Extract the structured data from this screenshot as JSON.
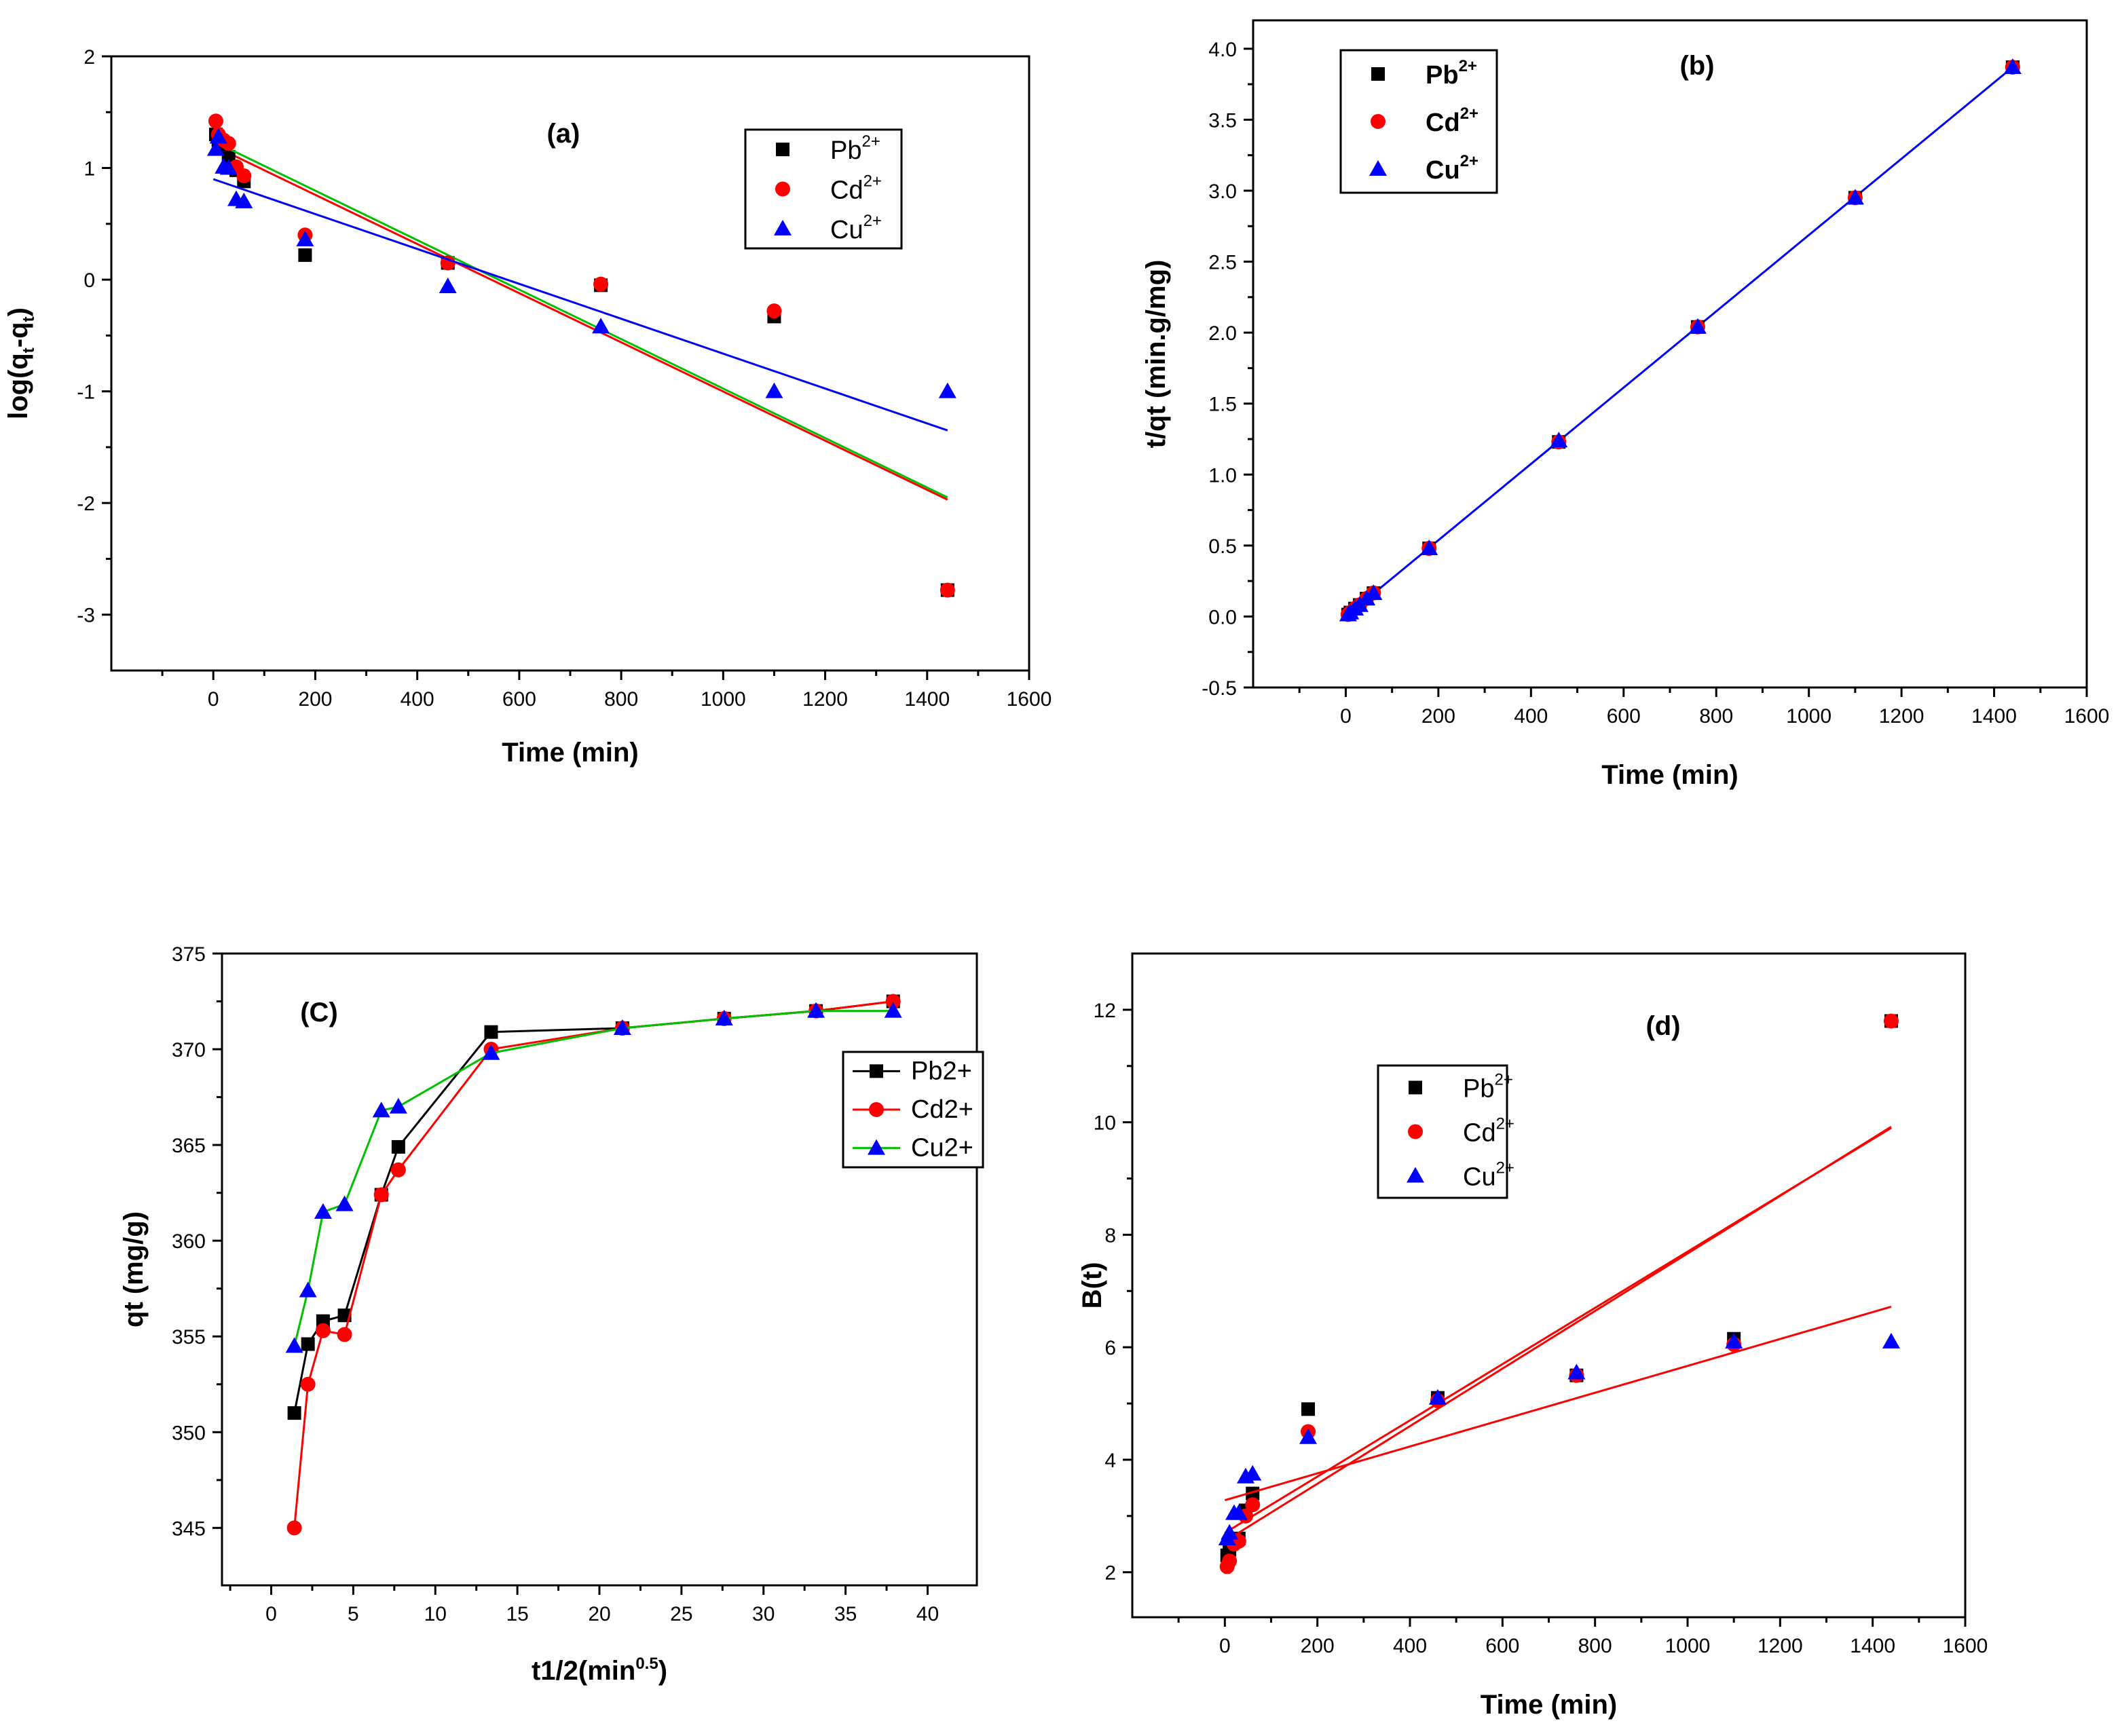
{
  "chart_data": [
    {
      "type": "scatter",
      "panel_label": "(a)",
      "xlabel": "Time (min)",
      "ylabel": {
        "prefix": "log(q",
        "sub1": "t",
        "mid": "-q",
        "sub2": "t",
        "suffix": ")"
      },
      "xlim": [
        -200,
        1600
      ],
      "ylim": [
        -3.5,
        2
      ],
      "xticks": [
        0,
        200,
        400,
        600,
        800,
        1000,
        1200,
        1400,
        1600
      ],
      "yticks": [
        -3,
        -2,
        -1,
        0,
        1,
        2
      ],
      "legend_position": "top-right",
      "series": [
        {
          "name": "Pb",
          "charge": "2+",
          "color": "#000000",
          "marker": "square",
          "x": [
            5,
            10,
            20,
            30,
            45,
            60,
            180,
            460,
            760,
            1100,
            1440
          ],
          "y": [
            1.3,
            1.25,
            1.2,
            1.1,
            0.98,
            0.88,
            0.22,
            0.15,
            -0.05,
            -0.33,
            -2.78
          ],
          "fit": {
            "color": "#ff0000",
            "x": [
              0,
              1440
            ],
            "y": [
              1.2,
              -1.97
            ]
          }
        },
        {
          "name": "Cd",
          "charge": "2+",
          "color": "#ff0000",
          "marker": "circle",
          "x": [
            5,
            10,
            20,
            30,
            45,
            60,
            180,
            460,
            760,
            1100,
            1440
          ],
          "y": [
            1.42,
            1.3,
            1.25,
            1.22,
            1.01,
            0.93,
            0.4,
            0.15,
            -0.04,
            -0.28,
            -2.78
          ],
          "fit": {
            "color": "#00c000",
            "x": [
              0,
              1440
            ],
            "y": [
              1.24,
              -1.95
            ]
          }
        },
        {
          "name": "Cu",
          "charge": "2+",
          "color": "#0000ff",
          "marker": "triangle",
          "x": [
            5,
            10,
            20,
            30,
            45,
            60,
            180,
            460,
            760,
            1100,
            1440
          ],
          "y": [
            1.17,
            1.28,
            1.01,
            1.0,
            0.72,
            0.7,
            0.36,
            -0.06,
            -0.42,
            -1.0,
            -1.0
          ],
          "fit": {
            "color": "#0000ff",
            "x": [
              0,
              1440
            ],
            "y": [
              0.9,
              -1.35
            ]
          }
        }
      ]
    },
    {
      "type": "scatter",
      "panel_label": "(b)",
      "xlabel": "Time (min)",
      "ylabel": "t/qt (min.g/mg)",
      "xlim": [
        -200,
        1600
      ],
      "ylim": [
        -0.5,
        4.2
      ],
      "xticks": [
        0,
        200,
        400,
        600,
        800,
        1000,
        1200,
        1400,
        1600
      ],
      "yticks": [
        -0.5,
        0.0,
        0.5,
        1.0,
        1.5,
        2.0,
        2.5,
        3.0,
        3.5,
        4.0
      ],
      "legend_position": "top-left",
      "series": [
        {
          "name": "Pb",
          "charge": "2+",
          "color": "#000000",
          "marker": "square",
          "x": [
            5,
            10,
            20,
            30,
            45,
            60,
            180,
            460,
            760,
            1100,
            1440
          ],
          "y": [
            0.014,
            0.028,
            0.056,
            0.081,
            0.126,
            0.165,
            0.48,
            1.23,
            2.04,
            2.95,
            3.87
          ]
        },
        {
          "name": "Cd",
          "charge": "2+",
          "color": "#ff0000",
          "marker": "circle",
          "x": [
            5,
            10,
            20,
            30,
            45,
            60,
            180,
            460,
            760,
            1100,
            1440
          ],
          "y": [
            0.014,
            0.028,
            0.057,
            0.082,
            0.127,
            0.166,
            0.48,
            1.23,
            2.04,
            2.95,
            3.87
          ]
        },
        {
          "name": "Cu",
          "charge": "2+",
          "color": "#0000ff",
          "marker": "triangle",
          "x": [
            5,
            10,
            20,
            30,
            45,
            60,
            180,
            460,
            760,
            1100,
            1440
          ],
          "y": [
            0.014,
            0.028,
            0.055,
            0.08,
            0.126,
            0.164,
            0.48,
            1.24,
            2.04,
            2.95,
            3.87
          ]
        }
      ],
      "fit": {
        "color": "#0000ff",
        "x": [
          0,
          1440
        ],
        "y": [
          0.0,
          3.87
        ]
      }
    },
    {
      "type": "line",
      "panel_label": "(C)",
      "xlabel": "t1/2(min",
      "xlabel_sup": "0.5",
      "xlabel_suffix": ")",
      "ylabel": "qt (mg/g)",
      "xlim": [
        -3,
        43
      ],
      "ylim": [
        342,
        375
      ],
      "xticks": [
        0,
        5,
        10,
        15,
        20,
        25,
        30,
        35,
        40
      ],
      "yticks": [
        345,
        350,
        355,
        360,
        365,
        370,
        375
      ],
      "legend_position": "right",
      "series": [
        {
          "name": "Pb2+",
          "color": "#000000",
          "marker": "square",
          "x": [
            1.41,
            2.24,
            3.16,
            4.47,
            6.71,
            7.75,
            13.4,
            21.4,
            27.6,
            33.2,
            37.9
          ],
          "y": [
            351.0,
            354.6,
            355.8,
            356.1,
            362.4,
            364.9,
            370.9,
            371.1,
            371.6,
            372.0,
            372.5
          ]
        },
        {
          "name": "Cd2+",
          "color": "#ff0000",
          "marker": "circle",
          "x": [
            1.41,
            2.24,
            3.16,
            4.47,
            6.71,
            7.75,
            13.4,
            21.4,
            27.6,
            33.2,
            37.9
          ],
          "y": [
            345.0,
            352.5,
            355.3,
            355.1,
            362.4,
            363.7,
            370.0,
            371.1,
            371.6,
            372.0,
            372.5
          ]
        },
        {
          "name": "Cu2+",
          "color": "#00c000",
          "marker": "triangle",
          "marker_color": "#0000ff",
          "x": [
            1.41,
            2.24,
            3.16,
            4.47,
            6.71,
            7.75,
            13.4,
            21.4,
            27.6,
            33.2,
            37.9
          ],
          "y": [
            354.5,
            357.4,
            361.5,
            361.9,
            366.8,
            367.0,
            369.8,
            371.1,
            371.6,
            372.0,
            372.0
          ]
        }
      ]
    },
    {
      "type": "scatter",
      "panel_label": "(d)",
      "xlabel": "Time (min)",
      "ylabel": "B(t)",
      "xlim": [
        -200,
        1600
      ],
      "ylim": [
        1.2,
        13
      ],
      "xticks": [
        0,
        200,
        400,
        600,
        800,
        1000,
        1200,
        1400,
        1600
      ],
      "yticks": [
        2,
        4,
        6,
        8,
        10,
        12
      ],
      "legend_position": "top-left",
      "series": [
        {
          "name": "Pb",
          "charge": "2+",
          "color": "#000000",
          "marker": "square",
          "x": [
            5,
            10,
            20,
            30,
            45,
            60,
            180,
            460,
            760,
            1100,
            1440
          ],
          "y": [
            2.3,
            2.4,
            2.6,
            2.6,
            3.1,
            3.4,
            4.9,
            5.1,
            5.5,
            6.15,
            11.8
          ],
          "fit": {
            "color": "#ff0000",
            "x": [
              0,
              1440
            ],
            "y": [
              2.7,
              9.9
            ]
          }
        },
        {
          "name": "Cd",
          "charge": "2+",
          "color": "#ff0000",
          "marker": "circle",
          "x": [
            5,
            10,
            20,
            30,
            45,
            60,
            180,
            460,
            760,
            1100,
            1440
          ],
          "y": [
            2.1,
            2.2,
            2.5,
            2.55,
            3.0,
            3.2,
            4.5,
            5.05,
            5.5,
            6.05,
            11.8
          ],
          "fit": {
            "color": "#ff0000",
            "x": [
              0,
              1440
            ],
            "y": [
              2.55,
              9.92
            ]
          }
        },
        {
          "name": "Cu",
          "charge": "2+",
          "color": "#0000ff",
          "marker": "triangle",
          "x": [
            5,
            10,
            20,
            30,
            45,
            60,
            180,
            460,
            760,
            1100,
            1440
          ],
          "y": [
            2.6,
            2.7,
            3.05,
            3.05,
            3.7,
            3.75,
            4.4,
            5.1,
            5.55,
            6.1,
            6.1
          ],
          "fit": {
            "color": "#ff0000",
            "x": [
              0,
              1440
            ],
            "y": [
              3.28,
              6.72
            ]
          }
        }
      ]
    }
  ]
}
